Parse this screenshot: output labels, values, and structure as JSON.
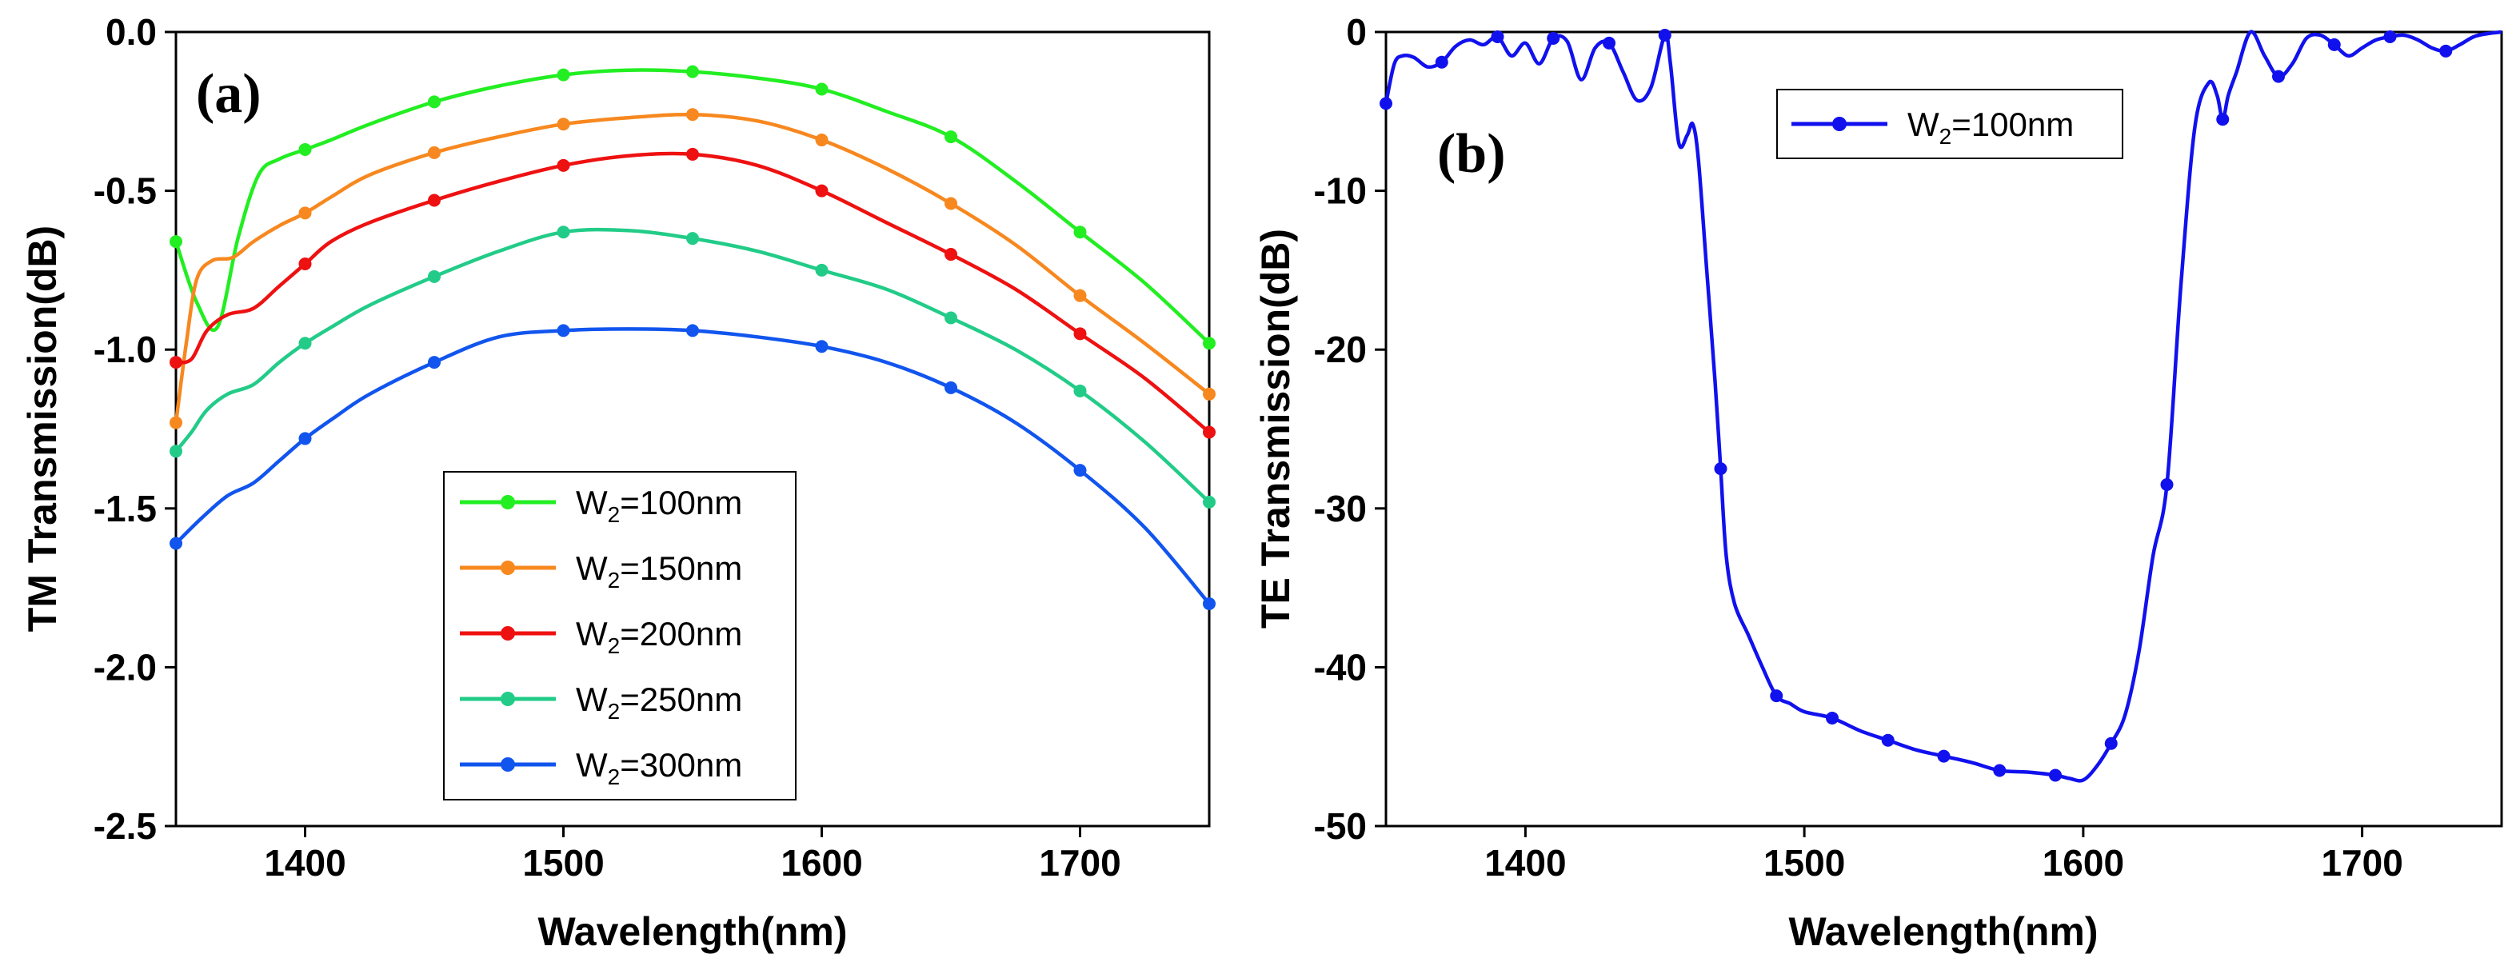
{
  "chart_data": [
    {
      "id": "a",
      "type": "line",
      "panel_label": "(a)",
      "xlabel": "Wavelength(nm)",
      "ylabel": "TM Transmission(dB)",
      "xlim": [
        1350,
        1750
      ],
      "ylim": [
        -2.5,
        0.0
      ],
      "xticks": [
        1400,
        1500,
        1600,
        1700
      ],
      "xtick_labels": [
        "1400",
        "1500",
        "1600",
        "1700"
      ],
      "yticks": [
        0.0,
        -0.5,
        -1.0,
        -1.5,
        -2.0,
        -2.5
      ],
      "ytick_labels": [
        "0.0",
        "-0.5",
        "-1.0",
        "-1.5",
        "-2.0",
        "-2.5"
      ],
      "legend_position": "center-left",
      "series": [
        {
          "name": "W2=100nm",
          "label_main": "W",
          "label_sub": "2",
          "label_rest": "=100nm",
          "color": "#22ee22",
          "x": [
            1350,
            1358,
            1366,
            1374,
            1382,
            1390,
            1400,
            1410,
            1425,
            1450,
            1475,
            1500,
            1525,
            1550,
            1575,
            1600,
            1625,
            1650,
            1675,
            1700,
            1725,
            1750
          ],
          "y": [
            -0.66,
            -0.85,
            -0.93,
            -0.65,
            -0.45,
            -0.4,
            -0.37,
            -0.34,
            -0.29,
            -0.22,
            -0.17,
            -0.135,
            -0.12,
            -0.125,
            -0.145,
            -0.18,
            -0.25,
            -0.33,
            -0.47,
            -0.63,
            -0.79,
            -0.98
          ],
          "markers_x": [
            1350,
            1400,
            1450,
            1500,
            1550,
            1600,
            1650,
            1700,
            1750
          ],
          "markers_y": [
            -0.66,
            -0.37,
            -0.22,
            -0.135,
            -0.125,
            -0.18,
            -0.33,
            -0.63,
            -0.98
          ]
        },
        {
          "name": "W2=150nm",
          "label_main": "W",
          "label_sub": "2",
          "label_rest": "=150nm",
          "color": "#f7881f",
          "x": [
            1350,
            1354,
            1358,
            1364,
            1372,
            1380,
            1390,
            1400,
            1410,
            1425,
            1450,
            1475,
            1500,
            1525,
            1550,
            1575,
            1600,
            1625,
            1650,
            1675,
            1700,
            1725,
            1750
          ],
          "y": [
            -1.23,
            -0.98,
            -0.78,
            -0.72,
            -0.71,
            -0.66,
            -0.61,
            -0.57,
            -0.52,
            -0.45,
            -0.38,
            -0.33,
            -0.29,
            -0.27,
            -0.26,
            -0.28,
            -0.34,
            -0.43,
            -0.54,
            -0.67,
            -0.83,
            -0.98,
            -1.14
          ],
          "markers_x": [
            1350,
            1400,
            1450,
            1500,
            1550,
            1600,
            1650,
            1700,
            1750
          ],
          "markers_y": [
            -1.23,
            -0.57,
            -0.38,
            -0.29,
            -0.26,
            -0.34,
            -0.54,
            -0.83,
            -1.14
          ]
        },
        {
          "name": "W2=200nm",
          "label_main": "W",
          "label_sub": "2",
          "label_rest": "=200nm",
          "color": "#ee1111",
          "x": [
            1350,
            1356,
            1362,
            1370,
            1380,
            1390,
            1400,
            1410,
            1425,
            1450,
            1475,
            1500,
            1525,
            1550,
            1575,
            1600,
            1625,
            1650,
            1675,
            1700,
            1725,
            1750
          ],
          "y": [
            -1.04,
            -1.03,
            -0.94,
            -0.89,
            -0.87,
            -0.8,
            -0.73,
            -0.66,
            -0.6,
            -0.53,
            -0.47,
            -0.42,
            -0.39,
            -0.385,
            -0.42,
            -0.5,
            -0.6,
            -0.7,
            -0.81,
            -0.95,
            -1.09,
            -1.26
          ],
          "markers_x": [
            1350,
            1400,
            1450,
            1500,
            1550,
            1600,
            1650,
            1700,
            1750
          ],
          "markers_y": [
            -1.04,
            -0.73,
            -0.53,
            -0.42,
            -0.385,
            -0.5,
            -0.7,
            -0.95,
            -1.26
          ]
        },
        {
          "name": "W2=250nm",
          "label_main": "W",
          "label_sub": "2",
          "label_rest": "=250nm",
          "color": "#22cc88",
          "x": [
            1350,
            1356,
            1362,
            1370,
            1380,
            1390,
            1400,
            1410,
            1425,
            1450,
            1475,
            1500,
            1525,
            1550,
            1575,
            1600,
            1625,
            1650,
            1675,
            1700,
            1725,
            1750
          ],
          "y": [
            -1.32,
            -1.26,
            -1.19,
            -1.14,
            -1.11,
            -1.04,
            -0.98,
            -0.93,
            -0.86,
            -0.77,
            -0.69,
            -0.63,
            -0.625,
            -0.65,
            -0.69,
            -0.75,
            -0.81,
            -0.9,
            -1.0,
            -1.13,
            -1.29,
            -1.48
          ],
          "markers_x": [
            1350,
            1400,
            1450,
            1500,
            1550,
            1600,
            1650,
            1700,
            1750
          ],
          "markers_y": [
            -1.32,
            -0.98,
            -0.77,
            -0.63,
            -0.65,
            -0.75,
            -0.9,
            -1.13,
            -1.48
          ]
        },
        {
          "name": "W2=300nm",
          "label_main": "W",
          "label_sub": "2",
          "label_rest": "=300nm",
          "color": "#1155ee",
          "x": [
            1350,
            1360,
            1370,
            1380,
            1390,
            1400,
            1412,
            1425,
            1450,
            1475,
            1500,
            1525,
            1550,
            1575,
            1600,
            1625,
            1650,
            1675,
            1700,
            1725,
            1750
          ],
          "y": [
            -1.61,
            -1.53,
            -1.46,
            -1.42,
            -1.35,
            -1.28,
            -1.21,
            -1.14,
            -1.04,
            -0.96,
            -0.94,
            -0.935,
            -0.94,
            -0.96,
            -0.99,
            -1.04,
            -1.12,
            -1.23,
            -1.38,
            -1.56,
            -1.8
          ],
          "markers_x": [
            1350,
            1400,
            1450,
            1500,
            1550,
            1600,
            1650,
            1700,
            1750
          ],
          "markers_y": [
            -1.61,
            -1.28,
            -1.04,
            -0.94,
            -0.94,
            -0.99,
            -1.12,
            -1.38,
            -1.8
          ]
        }
      ]
    },
    {
      "id": "b",
      "type": "line",
      "panel_label": "(b)",
      "xlabel": "Wavelength(nm)",
      "ylabel": "TE Transmission(dB)",
      "xlim": [
        1350,
        1750
      ],
      "ylim": [
        -50,
        0
      ],
      "xticks": [
        1400,
        1500,
        1600,
        1700
      ],
      "xtick_labels": [
        "1400",
        "1500",
        "1600",
        "1700"
      ],
      "yticks": [
        0,
        -10,
        -20,
        -30,
        -40,
        -50
      ],
      "ytick_labels": [
        "0",
        "-10",
        "-20",
        "-30",
        "-40",
        "-50"
      ],
      "legend_position": "top-center",
      "series": [
        {
          "name": "W2=100nm",
          "label_main": "W",
          "label_sub": "2",
          "label_rest": "=100nm",
          "color": "#1111ee",
          "x": [
            1350,
            1353,
            1356,
            1360,
            1365,
            1370,
            1375,
            1380,
            1385,
            1390,
            1395,
            1400,
            1405,
            1410,
            1415,
            1420,
            1425,
            1430,
            1435,
            1440,
            1445,
            1450,
            1452,
            1455,
            1458,
            1460,
            1462,
            1465,
            1468,
            1470,
            1472,
            1475,
            1480,
            1485,
            1490,
            1495,
            1500,
            1510,
            1520,
            1530,
            1540,
            1550,
            1560,
            1570,
            1580,
            1590,
            1595,
            1600,
            1605,
            1610,
            1615,
            1620,
            1625,
            1630,
            1635,
            1640,
            1645,
            1648,
            1650,
            1652,
            1655,
            1660,
            1665,
            1670,
            1675,
            1680,
            1685,
            1690,
            1695,
            1700,
            1705,
            1710,
            1715,
            1720,
            1725,
            1730,
            1735,
            1740,
            1745,
            1750
          ],
          "y": [
            -4.5,
            -2.0,
            -1.5,
            -1.6,
            -2.2,
            -1.9,
            -0.9,
            -0.5,
            -0.8,
            -0.3,
            -1.5,
            -0.7,
            -2.0,
            -0.4,
            -0.6,
            -3.0,
            -1.0,
            -0.7,
            -2.5,
            -4.3,
            -3.5,
            -0.2,
            -2.0,
            -7.0,
            -6.5,
            -5.8,
            -8.0,
            -15.0,
            -22.0,
            -27.5,
            -33.0,
            -36.0,
            -38.0,
            -40.0,
            -41.8,
            -42.3,
            -42.8,
            -43.2,
            -44.0,
            -44.6,
            -45.2,
            -45.6,
            -46.0,
            -46.5,
            -46.6,
            -46.8,
            -47.0,
            -47.1,
            -46.2,
            -44.8,
            -43.0,
            -39.0,
            -33.0,
            -28.5,
            -16.0,
            -6.0,
            -3.2,
            -4.0,
            -5.5,
            -4.0,
            -2.5,
            0.0,
            -1.5,
            -2.8,
            -2.0,
            -0.4,
            -0.2,
            -0.8,
            -1.5,
            -1.0,
            -0.5,
            -0.3,
            -0.2,
            -0.5,
            -1.0,
            -1.2,
            -0.8,
            -0.3,
            -0.1,
            0.0
          ],
          "markers_x": [
            1350,
            1370,
            1390,
            1410,
            1430,
            1450,
            1470,
            1490,
            1510,
            1530,
            1550,
            1570,
            1590,
            1610,
            1630,
            1650,
            1670,
            1690,
            1710,
            1730
          ],
          "markers_y": [
            -4.5,
            -1.9,
            -0.3,
            -0.4,
            -0.7,
            -0.2,
            -27.5,
            -41.8,
            -43.2,
            -44.6,
            -45.6,
            -46.5,
            -46.8,
            -44.8,
            -28.5,
            -5.5,
            -2.8,
            -0.8,
            -0.3,
            -1.2
          ]
        }
      ]
    }
  ]
}
